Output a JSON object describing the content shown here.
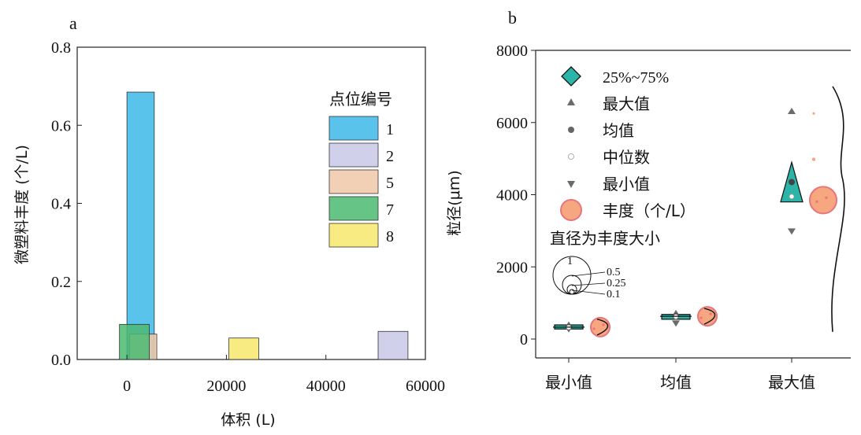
{
  "chart_data": [
    {
      "panel_label": "a",
      "type": "bar",
      "xlabel": "体积 (L)",
      "ylabel": "微塑料丰度 (个/L)",
      "xlim": [
        -10000,
        60000
      ],
      "ylim": [
        0,
        0.8
      ],
      "xticks": [
        "0",
        "20000",
        "40000",
        "60000"
      ],
      "yticks": [
        "0.0",
        "0.2",
        "0.4",
        "0.6",
        "0.8"
      ],
      "legend_title": "点位编号",
      "legend_position": "right",
      "series": [
        {
          "name": "1",
          "color": "#3cb9e8",
          "bar": {
            "x_start": 0,
            "x_end": 5500,
            "value": 0.685
          }
        },
        {
          "name": "2",
          "color": "#c8c8e6",
          "bar": {
            "x_start": 50500,
            "x_end": 56500,
            "value": 0.072
          }
        },
        {
          "name": "5",
          "color": "#f0c8a8",
          "bar": {
            "x_start": 500,
            "x_end": 6000,
            "value": 0.065
          }
        },
        {
          "name": "7",
          "color": "#4cba72",
          "bar": {
            "x_start": -1500,
            "x_end": 4500,
            "value": 0.09
          }
        },
        {
          "name": "8",
          "color": "#f7e86c",
          "bar": {
            "x_start": 20500,
            "x_end": 26500,
            "value": 0.055
          }
        }
      ]
    },
    {
      "panel_label": "b",
      "type": "scatter",
      "ylabel": "粒径(μm)",
      "ylim": [
        0,
        8000
      ],
      "yticks": [
        "0",
        "2000",
        "4000",
        "6000",
        "8000"
      ],
      "categories": [
        "最小值",
        "均值",
        "最大值"
      ],
      "legend": {
        "position": "top-left",
        "items": [
          "25%~75%",
          "最大值",
          "均值",
          "中位数",
          "最小值",
          "丰度（个/L）"
        ],
        "size_title": "直径为丰度大小",
        "size_values": [
          "1",
          "0.5",
          "0.25",
          "0.1"
        ]
      },
      "groups": [
        {
          "category": "最小值",
          "q25": 300,
          "q75": 370,
          "max": 380,
          "mean": 330,
          "median": 325,
          "min": 290,
          "abundance": 0.3
        },
        {
          "category": "均值",
          "q25": 570,
          "q75": 660,
          "max": 700,
          "mean": 630,
          "median": 620,
          "min": 450,
          "abundance": 0.3
        },
        {
          "category": "最大值",
          "q25": 3800,
          "q75": 4900,
          "max": 6300,
          "mean": 4350,
          "median": 3950,
          "min": 3000,
          "abundance": 0.3
        }
      ],
      "colors": {
        "box": "#2bb5a8",
        "abundance": "#f6a780",
        "abundance_edge": "#e8747c",
        "marker": "#6b6b6b"
      }
    }
  ]
}
